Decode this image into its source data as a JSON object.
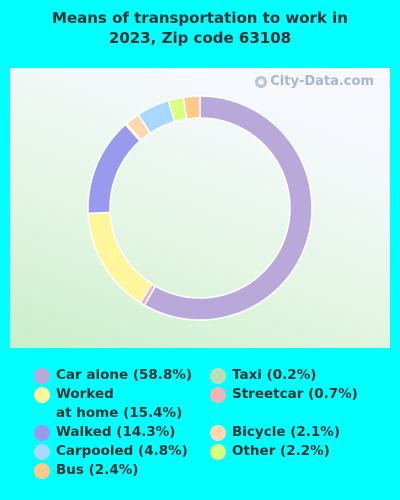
{
  "title_lines": [
    "Means of transportation to work in",
    "2023, Zip code 63108"
  ],
  "watermark": "City-Data.com",
  "chart_data": {
    "type": "pie",
    "variant": "donut",
    "title": "Means of transportation to work in 2023, Zip code 63108",
    "start_angle_deg": 0,
    "direction": "clockwise",
    "slices": [
      {
        "name": "Car alone",
        "value": 58.8,
        "color": "#B9A9DA"
      },
      {
        "name": "Streetcar",
        "value": 0.7,
        "color": "#F2B3B8"
      },
      {
        "name": "Worked at home",
        "value": 15.4,
        "color": "#FFF59B"
      },
      {
        "name": "Walked",
        "value": 14.3,
        "color": "#9999EE"
      },
      {
        "name": "Taxi",
        "value": 0.2,
        "color": "#BFDDB5"
      },
      {
        "name": "Bicycle",
        "value": 2.1,
        "color": "#FFD8B0"
      },
      {
        "name": "Carpooled",
        "value": 4.8,
        "color": "#A9D8FF"
      },
      {
        "name": "Other",
        "value": 2.2,
        "color": "#D9FF80"
      },
      {
        "name": "Bus",
        "value": 2.4,
        "color": "#FFC98A"
      }
    ]
  },
  "legend": [
    {
      "label": "Car alone (58.8%)",
      "color": "#B9A9DA"
    },
    {
      "label": "Worked\nat home (15.4%)",
      "color": "#FFF59B"
    },
    {
      "label": "Walked (14.3%)",
      "color": "#9999EE"
    },
    {
      "label": "Carpooled (4.8%)",
      "color": "#A9D8FF"
    },
    {
      "label": "Bus (2.4%)",
      "color": "#FFC98A"
    },
    {
      "label": "Taxi (0.2%)",
      "color": "#BFDDB5"
    },
    {
      "label": "Streetcar (0.7%)",
      "color": "#F2B3B8"
    },
    {
      "label": "Bicycle (2.1%)",
      "color": "#FFD8B0"
    },
    {
      "label": "Other (2.2%)",
      "color": "#D9FF80"
    }
  ]
}
